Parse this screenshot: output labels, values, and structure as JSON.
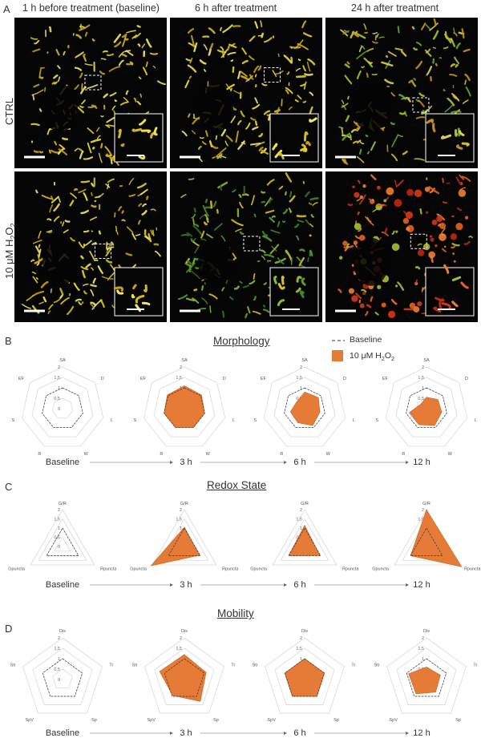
{
  "panel_a": {
    "letter": "A",
    "columns": [
      "1 h before treatment (baseline)",
      "6 h after treatment",
      "24 h after treatment"
    ],
    "rows": [
      {
        "label": "CTRL"
      },
      {
        "label_parts": [
          "10 μM H",
          "2",
          "O",
          "2"
        ]
      }
    ]
  },
  "legend": {
    "baseline_label": "Baseline",
    "treatment_label_parts": [
      "10 μM H",
      "2",
      "O",
      "2"
    ],
    "baseline_color": "#333333",
    "treatment_color": "#e67a37"
  },
  "timeline": [
    "Baseline",
    "3 h",
    "6 h",
    "12 h"
  ],
  "chart_data": [
    {
      "panel": "B",
      "title": "Morphology",
      "type": "radar",
      "axes": [
        "SA",
        "D",
        "L",
        "W",
        "R",
        "S",
        "EF"
      ],
      "ticks": [
        "2",
        "1,5",
        "1",
        "0,5",
        "0"
      ],
      "rmax": 2,
      "baseline": [
        1,
        1,
        1,
        1,
        1,
        1,
        1
      ],
      "series": [
        {
          "time": "Baseline",
          "values": null
        },
        {
          "time": "3 h",
          "values": [
            1.1,
            1.05,
            1.0,
            1.0,
            1.0,
            1.0,
            1.05
          ]
        },
        {
          "time": "6 h",
          "values": [
            0.8,
            0.85,
            0.75,
            0.9,
            0.75,
            0.7,
            0.5
          ]
        },
        {
          "time": "12 h",
          "values": [
            0.55,
            0.7,
            0.75,
            0.9,
            0.85,
            0.85,
            0.35
          ]
        }
      ]
    },
    {
      "panel": "C",
      "title": "Redox State",
      "type": "radar",
      "axes": [
        "G/R",
        "Rpuncta",
        "Gpuncta"
      ],
      "ticks": [
        "2",
        "1,5",
        "1",
        "0,5",
        "0"
      ],
      "rmax": 2,
      "baseline": [
        1,
        1,
        1
      ],
      "series": [
        {
          "time": "Baseline",
          "values": null
        },
        {
          "time": "3 h",
          "values": [
            1.05,
            0.95,
            2.1
          ]
        },
        {
          "time": "6 h",
          "values": [
            1.15,
            0.95,
            1.0
          ]
        },
        {
          "time": "12 h",
          "values": [
            2.0,
            2.2,
            1.0
          ]
        }
      ]
    },
    {
      "panel": "D",
      "title": "Mobility",
      "type": "radar",
      "axes": [
        "Dis",
        "Tr",
        "Sp",
        "SpV",
        "Str"
      ],
      "ticks": [
        "2",
        "1,5",
        "1",
        "0,5",
        "0"
      ],
      "rmax": 2,
      "baseline": [
        1,
        1,
        1,
        1,
        1
      ],
      "series": [
        {
          "time": "Baseline",
          "values": null
        },
        {
          "time": "3 h",
          "values": [
            1.2,
            1.1,
            1.3,
            0.95,
            1.25
          ]
        },
        {
          "time": "6 h",
          "values": [
            1.0,
            1.0,
            1.0,
            1.0,
            1.0
          ]
        },
        {
          "time": "12 h",
          "values": [
            0.6,
            0.7,
            0.75,
            0.85,
            0.9
          ]
        }
      ]
    }
  ]
}
